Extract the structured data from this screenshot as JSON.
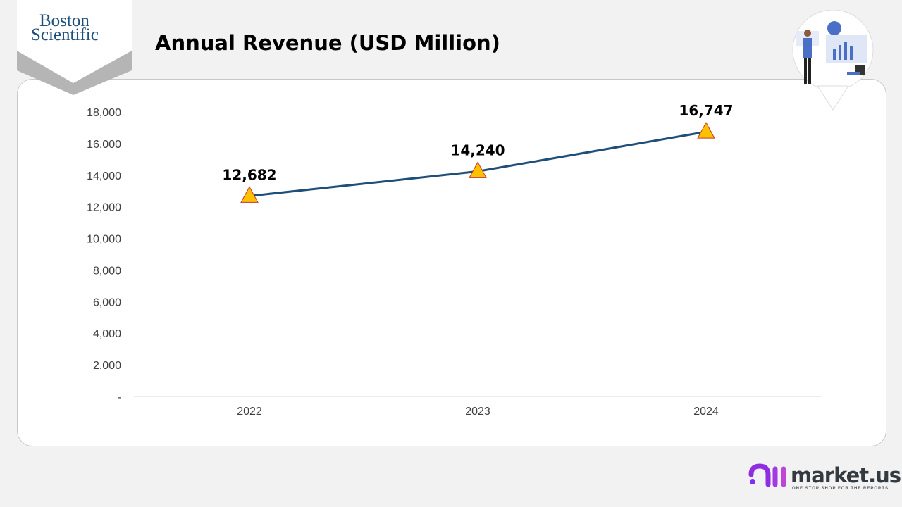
{
  "header": {
    "title": "Annual Revenue (USD Million)",
    "logo": "Boston Scientific"
  },
  "branding": {
    "name": "market.us",
    "tagline": "ONE STOP SHOP FOR THE REPORTS"
  },
  "colors": {
    "line": "#1f4e79",
    "marker_fill": "#ffc000",
    "marker_stroke": "#c0392b",
    "brand_purple": "#7b2ff7"
  },
  "chart_data": {
    "type": "line",
    "title": "Annual Revenue (USD Million)",
    "categories": [
      "2022",
      "2023",
      "2024"
    ],
    "values": [
      12682,
      14240,
      16747
    ],
    "data_labels": [
      "12,682",
      "14,240",
      "16,747"
    ],
    "ylim": [
      0,
      18000
    ],
    "yticks": [
      0,
      2000,
      4000,
      6000,
      8000,
      10000,
      12000,
      14000,
      16000,
      18000
    ],
    "ytick_labels": [
      "-",
      "2,000",
      "4,000",
      "6,000",
      "8,000",
      "10,000",
      "12,000",
      "14,000",
      "16,000",
      "18,000"
    ],
    "marker": "triangle",
    "grid": false,
    "legend": "none"
  }
}
